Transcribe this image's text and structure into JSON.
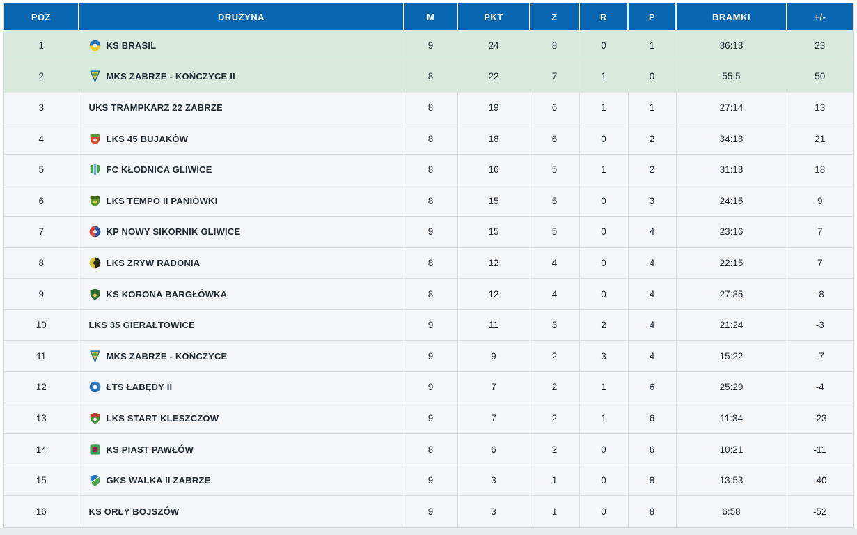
{
  "table": {
    "header_color": "#0866b0",
    "highlight_color": "#d7eadd",
    "row_color": "#f4f6f9",
    "text_color": "#212b36",
    "columns": [
      {
        "key": "poz",
        "label": "POZ"
      },
      {
        "key": "team",
        "label": "DRUŻYNA"
      },
      {
        "key": "m",
        "label": "M"
      },
      {
        "key": "pkt",
        "label": "PKT"
      },
      {
        "key": "z",
        "label": "Z"
      },
      {
        "key": "r",
        "label": "R"
      },
      {
        "key": "p",
        "label": "P"
      },
      {
        "key": "bramki",
        "label": "BRAMKI"
      },
      {
        "key": "diff",
        "label": "+/-"
      }
    ],
    "rows": [
      {
        "pos": "1",
        "team": "KS BRASIL",
        "highlight": true,
        "crest": {
          "icon": "club-crest-icon",
          "kind": "circle-half",
          "colors": [
            "#1e6fb5",
            "#f0cf2a",
            "#eaf2f5"
          ]
        },
        "m": "9",
        "pkt": "24",
        "z": "8",
        "r": "0",
        "p": "1",
        "bramki": "36:13",
        "diff": "23"
      },
      {
        "pos": "2",
        "team": "MKS ZABRZE - KOŃCZYCE II",
        "highlight": true,
        "crest": {
          "icon": "club-crest-icon",
          "kind": "pennant",
          "colors": [
            "#f0cf2a",
            "#1e6fb5",
            "#57a143"
          ]
        },
        "m": "8",
        "pkt": "22",
        "z": "7",
        "r": "1",
        "p": "0",
        "bramki": "55:5",
        "diff": "50"
      },
      {
        "pos": "3",
        "team": "UKS TRAMPKARZ 22 ZABRZE",
        "highlight": false,
        "crest": null,
        "m": "8",
        "pkt": "19",
        "z": "6",
        "r": "1",
        "p": "1",
        "bramki": "27:14",
        "diff": "13"
      },
      {
        "pos": "4",
        "team": "LKS 45 BUJAKÓW",
        "highlight": false,
        "crest": {
          "icon": "club-crest-icon",
          "kind": "shield-band",
          "colors": [
            "#d6452f",
            "#4e9e3b",
            "#f3e9d8"
          ]
        },
        "m": "8",
        "pkt": "18",
        "z": "6",
        "r": "0",
        "p": "2",
        "bramki": "34:13",
        "diff": "21"
      },
      {
        "pos": "5",
        "team": "FC KŁODNICA GLIWICE",
        "highlight": false,
        "crest": {
          "icon": "club-crest-icon",
          "kind": "shield-stripe",
          "colors": [
            "#43a443",
            "#cfe2f5",
            "#3a7ec8"
          ]
        },
        "m": "8",
        "pkt": "16",
        "z": "5",
        "r": "1",
        "p": "2",
        "bramki": "31:13",
        "diff": "18"
      },
      {
        "pos": "6",
        "team": "LKS TEMPO II PANIÓWKI",
        "highlight": false,
        "crest": {
          "icon": "club-crest-icon",
          "kind": "shield-band",
          "colors": [
            "#5f9426",
            "#3e6618",
            "#e2d75a"
          ]
        },
        "m": "8",
        "pkt": "15",
        "z": "5",
        "r": "0",
        "p": "3",
        "bramki": "24:15",
        "diff": "9"
      },
      {
        "pos": "7",
        "team": "KP NOWY SIKORNIK GLIWICE",
        "highlight": false,
        "crest": {
          "icon": "club-crest-icon",
          "kind": "circle-vhalf",
          "colors": [
            "#d9463c",
            "#2c55a4",
            "#f0f0f0"
          ]
        },
        "m": "9",
        "pkt": "15",
        "z": "5",
        "r": "0",
        "p": "4",
        "bramki": "23:16",
        "diff": "7"
      },
      {
        "pos": "8",
        "team": "LKS ZRYW RADONIA",
        "highlight": false,
        "crest": {
          "icon": "club-crest-icon",
          "kind": "circle-vhalf",
          "colors": [
            "#d8c737",
            "#26261e",
            "#26261e"
          ]
        },
        "m": "8",
        "pkt": "12",
        "z": "4",
        "r": "0",
        "p": "4",
        "bramki": "22:15",
        "diff": "7"
      },
      {
        "pos": "9",
        "team": "KS KORONA BARGŁÓWKA",
        "highlight": false,
        "crest": {
          "icon": "club-crest-icon",
          "kind": "shield-band",
          "colors": [
            "#2f6b31",
            "#2f6b31",
            "#e0be3c"
          ]
        },
        "m": "8",
        "pkt": "12",
        "z": "4",
        "r": "0",
        "p": "4",
        "bramki": "27:35",
        "diff": "-8"
      },
      {
        "pos": "10",
        "team": "LKS 35 GIERAŁTOWICE",
        "highlight": false,
        "crest": null,
        "m": "9",
        "pkt": "11",
        "z": "3",
        "r": "2",
        "p": "4",
        "bramki": "21:24",
        "diff": "-3"
      },
      {
        "pos": "11",
        "team": "MKS ZABRZE - KOŃCZYCE",
        "highlight": false,
        "crest": {
          "icon": "club-crest-icon",
          "kind": "pennant",
          "colors": [
            "#f0cf2a",
            "#1e6fb5",
            "#57a143"
          ]
        },
        "m": "9",
        "pkt": "9",
        "z": "2",
        "r": "3",
        "p": "4",
        "bramki": "15:22",
        "diff": "-7"
      },
      {
        "pos": "12",
        "team": "ŁTS ŁABĘDY II",
        "highlight": false,
        "crest": {
          "icon": "club-crest-icon",
          "kind": "circle-dot",
          "colors": [
            "#2e79be",
            "#e8f1fa"
          ]
        },
        "m": "9",
        "pkt": "7",
        "z": "2",
        "r": "1",
        "p": "6",
        "bramki": "25:29",
        "diff": "-4"
      },
      {
        "pos": "13",
        "team": "LKS START KLESZCZÓW",
        "highlight": false,
        "crest": {
          "icon": "club-crest-icon",
          "kind": "shield-band",
          "colors": [
            "#3f8f3a",
            "#c23b2e",
            "#efebdd"
          ]
        },
        "m": "9",
        "pkt": "7",
        "z": "2",
        "r": "1",
        "p": "6",
        "bramki": "11:34",
        "diff": "-23"
      },
      {
        "pos": "14",
        "team": "KS PIAST PAWŁÓW",
        "highlight": false,
        "crest": {
          "icon": "club-crest-icon",
          "kind": "square",
          "colors": [
            "#3fa057",
            "#8e2746"
          ]
        },
        "m": "8",
        "pkt": "6",
        "z": "2",
        "r": "0",
        "p": "6",
        "bramki": "10:21",
        "diff": "-11"
      },
      {
        "pos": "15",
        "team": "GKS WALKA II ZABRZE",
        "highlight": false,
        "crest": {
          "icon": "club-crest-icon",
          "kind": "shield-diag",
          "colors": [
            "#2e79be",
            "#4ca344",
            "#ffffff"
          ]
        },
        "m": "9",
        "pkt": "3",
        "z": "1",
        "r": "0",
        "p": "8",
        "bramki": "13:53",
        "diff": "-40"
      },
      {
        "pos": "16",
        "team": "KS ORŁY BOJSZÓW",
        "highlight": false,
        "crest": null,
        "m": "9",
        "pkt": "3",
        "z": "1",
        "r": "0",
        "p": "8",
        "bramki": "6:58",
        "diff": "-52"
      }
    ]
  }
}
